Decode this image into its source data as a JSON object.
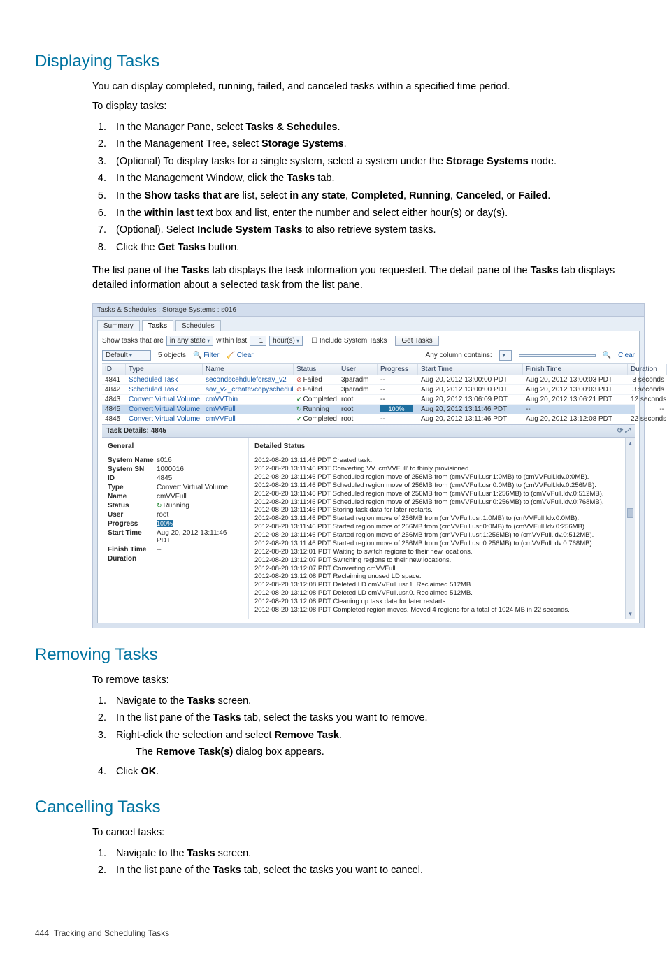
{
  "headings": {
    "displaying": "Displaying Tasks",
    "removing": "Removing Tasks",
    "cancelling": "Cancelling Tasks"
  },
  "intro": {
    "p1": "You can display completed, running, failed, and canceled tasks within a specified time period.",
    "p2": "To display tasks:"
  },
  "steps_display": {
    "s1a": "In the Manager Pane, select ",
    "s1b": "Tasks & Schedules",
    "s1c": ".",
    "s2a": "In the Management Tree, select ",
    "s2b": "Storage Systems",
    "s2c": ".",
    "s3a": "(Optional) To display tasks for a single system, select a system under the ",
    "s3b": "Storage Systems",
    "s3c": " node.",
    "s4a": "In the Management Window, click the ",
    "s4b": "Tasks",
    "s4c": " tab.",
    "s5a": "In the ",
    "s5b": "Show tasks that are",
    "s5c": " list, select ",
    "s5d": "in any state",
    "s5e": ", ",
    "s5f": "Completed",
    "s5g": ", ",
    "s5h": "Running",
    "s5i": ", ",
    "s5j": "Canceled",
    "s5k": ", or ",
    "s5l": "Failed",
    "s5m": ".",
    "s6a": "In the ",
    "s6b": "within last",
    "s6c": " text box and list, enter the number and select either hour(s) or day(s).",
    "s7a": "(Optional). Select ",
    "s7b": "Include System Tasks",
    "s7c": " to also retrieve system tasks.",
    "s8a": "Click the ",
    "s8b": "Get Tasks",
    "s8c": " button."
  },
  "after_steps": {
    "p1a": "The list pane of the ",
    "p1b": "Tasks",
    "p1c": " tab displays the task information you requested. The detail pane of the ",
    "p1d": "Tasks",
    "p1e": " tab displays detailed information about a selected task from the list pane."
  },
  "shot": {
    "title": "Tasks & Schedules : Storage Systems : s016",
    "tab1": "Summary",
    "tab2": "Tasks",
    "tab3": "Schedules",
    "lbl_show": "Show tasks that are",
    "dd_state": "in any state",
    "lbl_within": "within last",
    "inp_num": "1",
    "dd_unit": "hour(s)",
    "chk_include": "Include System Tasks",
    "btn_get": "Get Tasks",
    "dd_default": "Default",
    "objcount": "5 objects",
    "filter": "Filter",
    "clear1": "Clear",
    "anycol": "Any column contains:",
    "clear2": "Clear",
    "cols": {
      "id": "ID",
      "type": "Type",
      "name": "Name",
      "status": "Status",
      "user": "User",
      "progress": "Progress",
      "start": "Start Time",
      "finish": "Finish Time",
      "dur": "Duration"
    },
    "rows": [
      {
        "id": "4841",
        "type": "Scheduled Task",
        "name": "secondscehduleforsav_v2",
        "status": "Failed",
        "sicon": "fail",
        "user": "3paradm",
        "prog": "--",
        "start": "Aug 20, 2012 13:00:00 PDT",
        "finish": "Aug 20, 2012 13:00:03 PDT",
        "dur": "3 seconds"
      },
      {
        "id": "4842",
        "type": "Scheduled Task",
        "name": "sav_v2_createvcopyschedule",
        "status": "Failed",
        "sicon": "fail",
        "user": "3paradm",
        "prog": "--",
        "start": "Aug 20, 2012 13:00:00 PDT",
        "finish": "Aug 20, 2012 13:00:03 PDT",
        "dur": "3 seconds"
      },
      {
        "id": "4843",
        "type": "Convert Virtual Volume",
        "name": "cmVVThin",
        "status": "Completed",
        "sicon": "ok",
        "user": "root",
        "prog": "--",
        "start": "Aug 20, 2012 13:06:09 PDT",
        "finish": "Aug 20, 2012 13:06:21 PDT",
        "dur": "12 seconds"
      },
      {
        "id": "4845",
        "type": "Convert Virtual Volume",
        "name": "cmVVFull",
        "status": "Running",
        "sicon": "run",
        "user": "root",
        "prog": "100%",
        "start": "Aug 20, 2012 13:11:46 PDT",
        "finish": "--",
        "dur": "--",
        "sel": true
      },
      {
        "id": "4845",
        "type": "Convert Virtual Volume",
        "name": "cmVVFull",
        "status": "Completed",
        "sicon": "ok",
        "user": "root",
        "prog": "--",
        "start": "Aug 20, 2012 13:11:46 PDT",
        "finish": "Aug 20, 2012 13:12:08 PDT",
        "dur": "22 seconds"
      }
    ],
    "details_title": "Task Details: 4845",
    "general_h": "General",
    "detailed_h": "Detailed Status",
    "kv": {
      "sysname_k": "System Name",
      "sysname_v": "s016",
      "syssn_k": "System SN",
      "syssn_v": "1000016",
      "id_k": "ID",
      "id_v": "4845",
      "type_k": "Type",
      "type_v": "Convert Virtual Volume",
      "name_k": "Name",
      "name_v": "cmVVFull",
      "status_k": "Status",
      "status_v": "Running",
      "user_k": "User",
      "user_v": "root",
      "prog_k": "Progress",
      "prog_v": "100%",
      "start_k": "Start Time",
      "start_v": "Aug 20, 2012 13:11:46 PDT",
      "finish_k": "Finish Time",
      "finish_v": "--",
      "dur_k": "Duration",
      "dur_v": ""
    },
    "log": [
      "2012-08-20 13:11:46 PDT Created task.",
      "2012-08-20 13:11:46 PDT Converting VV 'cmVVFull' to thinly provisioned.",
      "2012-08-20 13:11:46 PDT Scheduled region move of 256MB from (cmVVFull.usr.1:0MB) to (cmVVFull.ldv.0:0MB).",
      "2012-08-20 13:11:46 PDT Scheduled region move of 256MB from (cmVVFull.usr.0:0MB) to (cmVVFull.ldv.0:256MB).",
      "2012-08-20 13:11:46 PDT Scheduled region move of 256MB from (cmVVFull.usr.1:256MB) to (cmVVFull.ldv.0:512MB).",
      "2012-08-20 13:11:46 PDT Scheduled region move of 256MB from (cmVVFull.usr.0:256MB) to (cmVVFull.ldv.0:768MB).",
      "2012-08-20 13:11:46 PDT Storing task data for later restarts.",
      "2012-08-20 13:11:46 PDT Started region move of 256MB from (cmVVFull.usr.1:0MB) to (cmVVFull.ldv.0:0MB).",
      "2012-08-20 13:11:46 PDT Started region move of 256MB from (cmVVFull.usr.0:0MB) to (cmVVFull.ldv.0:256MB).",
      "2012-08-20 13:11:46 PDT Started region move of 256MB from (cmVVFull.usr.1:256MB) to (cmVVFull.ldv.0:512MB).",
      "2012-08-20 13:11:46 PDT Started region move of 256MB from (cmVVFull.usr.0:256MB) to (cmVVFull.ldv.0:768MB).",
      "2012-08-20 13:12:01 PDT Waiting to switch regions to their new locations.",
      "2012-08-20 13:12:07 PDT Switching regions to their new locations.",
      "2012-08-20 13:12:07 PDT Converting cmVVFull.",
      "2012-08-20 13:12:08 PDT Reclaiming unused LD space.",
      "2012-08-20 13:12:08 PDT Deleted LD cmVVFull.usr.1. Reclaimed 512MB.",
      "2012-08-20 13:12:08 PDT Deleted LD cmVVFull.usr.0. Reclaimed 512MB.",
      "2012-08-20 13:12:08 PDT Cleaning up task data for later restarts.",
      "2012-08-20 13:12:08 PDT Completed region moves. Moved 4 regions for a total of 1024 MB in 22 seconds."
    ]
  },
  "remove": {
    "intro": "To remove tasks:",
    "s1a": "Navigate to the ",
    "s1b": "Tasks",
    "s1c": " screen.",
    "s2a": "In the list pane of the ",
    "s2b": "Tasks",
    "s2c": " tab, select the tasks you want to remove.",
    "s3a": "Right-click the selection and select ",
    "s3b": "Remove Task",
    "s3c": ".",
    "s3da": "The ",
    "s3db": "Remove Task(s)",
    "s3dc": " dialog box appears.",
    "s4a": "Click ",
    "s4b": "OK",
    "s4c": "."
  },
  "cancel": {
    "intro": "To cancel tasks:",
    "s1a": "Navigate to the ",
    "s1b": "Tasks",
    "s1c": " screen.",
    "s2a": "In the list pane of the ",
    "s2b": "Tasks",
    "s2c": " tab, select the tasks you want to cancel."
  },
  "footer": {
    "page": "444",
    "title": "Tracking and Scheduling Tasks"
  }
}
